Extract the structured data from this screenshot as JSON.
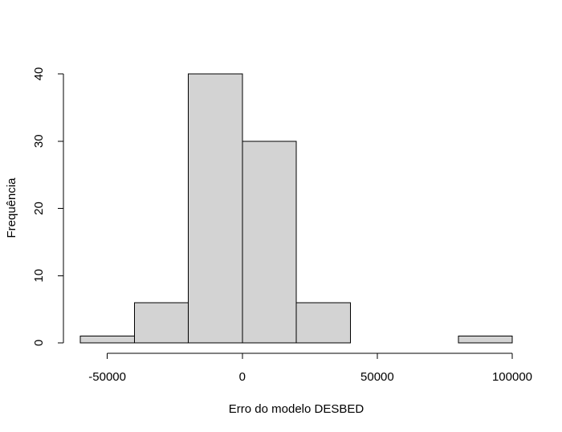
{
  "chart_data": {
    "type": "bar",
    "title": "",
    "xlabel": "Erro do modelo DESBED",
    "ylabel": "Frequência",
    "bins": [
      {
        "start": -60000,
        "end": -40000,
        "count": 1
      },
      {
        "start": -40000,
        "end": -20000,
        "count": 6
      },
      {
        "start": -20000,
        "end": 0,
        "count": 40
      },
      {
        "start": 0,
        "end": 20000,
        "count": 30
      },
      {
        "start": 20000,
        "end": 40000,
        "count": 6
      },
      {
        "start": 40000,
        "end": 60000,
        "count": 0
      },
      {
        "start": 60000,
        "end": 80000,
        "count": 0
      },
      {
        "start": 80000,
        "end": 100000,
        "count": 1
      }
    ],
    "x_ticks": [
      -50000,
      0,
      50000,
      100000
    ],
    "x_tick_labels": [
      "-50000",
      "0",
      "50000",
      "100000"
    ],
    "y_ticks": [
      0,
      10,
      20,
      30,
      40
    ],
    "y_tick_labels": [
      "0",
      "10",
      "20",
      "30",
      "40"
    ],
    "xlim": [
      -60000,
      100000
    ],
    "ylim": [
      0,
      40
    ],
    "bar_color": "#d3d3d3",
    "edge_color": "#000000",
    "grid": false
  }
}
